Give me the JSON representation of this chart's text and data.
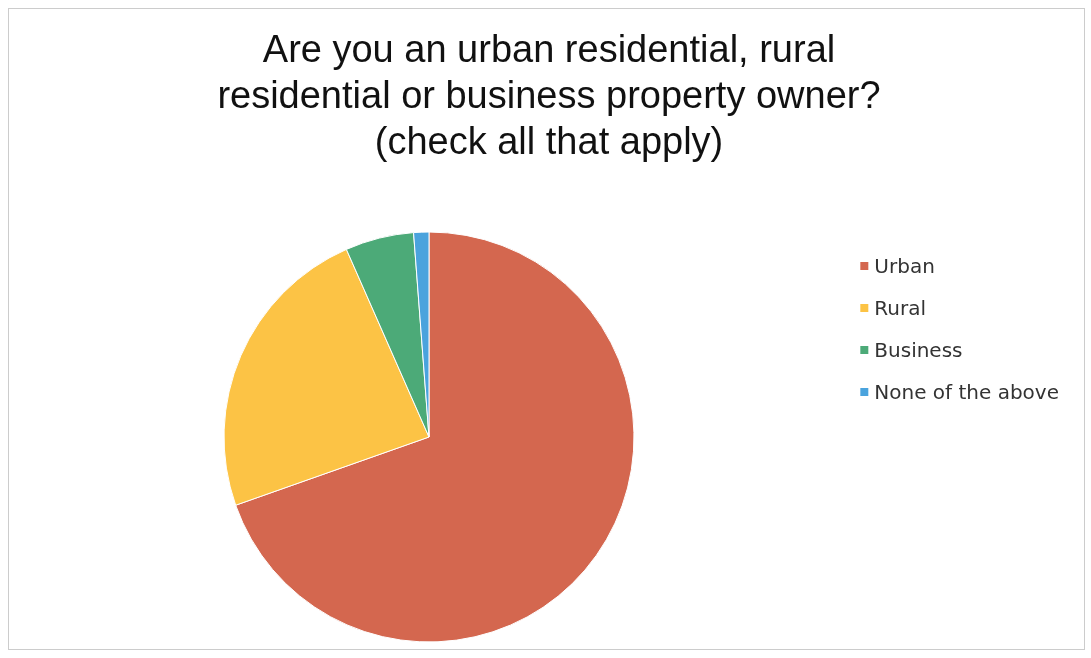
{
  "chart_data": {
    "type": "pie",
    "title": "Are you an urban residential, rural\nresidential or business property owner?\n(check all that apply)",
    "categories": [
      "Urban",
      "Rural",
      "Business",
      "None of the above"
    ],
    "values": [
      69.6,
      23.8,
      5.4,
      1.2
    ],
    "colors": [
      "#d4674f",
      "#fcc345",
      "#4caa78",
      "#4aa3dd"
    ],
    "legend": "right"
  }
}
